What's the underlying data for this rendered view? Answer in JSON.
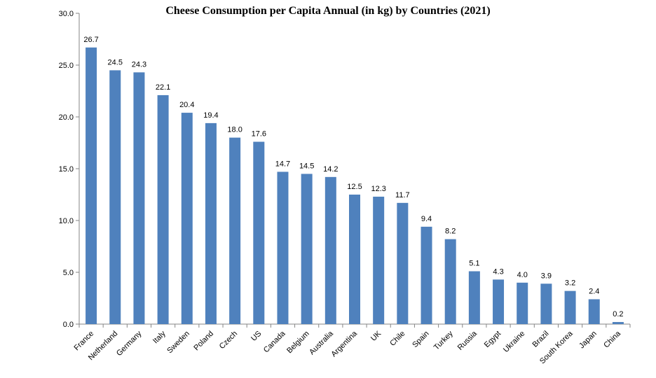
{
  "chart_data": {
    "type": "bar",
    "title": "Cheese Consumption per Capita Annual (in kg) by Countries (2021)",
    "xlabel": "",
    "ylabel": "",
    "ylim": [
      0,
      30
    ],
    "yticks": [
      "0.0",
      "5.0",
      "10.0",
      "15.0",
      "20.0",
      "25.0",
      "30.0"
    ],
    "grid": false,
    "legend": false,
    "bar_color": "#4F81BD",
    "categories": [
      "France",
      "Netherland",
      "Germany",
      "Italy",
      "Sweden",
      "Poland",
      "Czech",
      "US",
      "Canada",
      "Belgium",
      "Australia",
      "Argentina",
      "UK",
      "Chile",
      "Spain",
      "Turkey",
      "Russia",
      "Egypt",
      "Ukraine",
      "Brazil",
      "South Korea",
      "Japan",
      "China"
    ],
    "values": [
      26.7,
      24.5,
      24.3,
      22.1,
      20.4,
      19.4,
      18.0,
      17.6,
      14.7,
      14.5,
      14.2,
      12.5,
      12.3,
      11.7,
      9.4,
      8.2,
      5.1,
      4.3,
      4.0,
      3.9,
      3.2,
      2.4,
      0.2
    ],
    "data_labels": [
      "26.7",
      "24.5",
      "24.3",
      "22.1",
      "20.4",
      "19.4",
      "18.0",
      "17.6",
      "14.7",
      "14.5",
      "14.2",
      "12.5",
      "12.3",
      "11.7",
      "9.4",
      "8.2",
      "5.1",
      "4.3",
      "4.0",
      "3.9",
      "3.2",
      "2.4",
      "0.2"
    ]
  }
}
